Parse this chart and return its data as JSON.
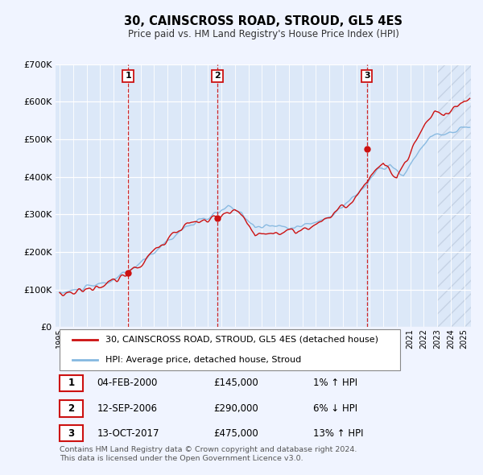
{
  "title": "30, CAINSCROSS ROAD, STROUD, GL5 4ES",
  "subtitle": "Price paid vs. HM Land Registry's House Price Index (HPI)",
  "background_color": "#f0f4ff",
  "plot_bg_color": "#dce8f8",
  "hpi_color": "#85b8e0",
  "price_color": "#cc1111",
  "ylim": [
    0,
    700000
  ],
  "yticks": [
    0,
    100000,
    200000,
    300000,
    400000,
    500000,
    600000,
    700000
  ],
  "xlim_start": 1994.7,
  "xlim_end": 2025.5,
  "sale_points": [
    {
      "year": 2000.08,
      "price": 145000,
      "label": "1"
    },
    {
      "year": 2006.7,
      "price": 290000,
      "label": "2"
    },
    {
      "year": 2017.78,
      "price": 475000,
      "label": "3"
    }
  ],
  "vlines": [
    {
      "year": 2000.08,
      "label": "1"
    },
    {
      "year": 2006.7,
      "label": "2"
    },
    {
      "year": 2017.78,
      "label": "3"
    }
  ],
  "legend_price_label": "30, CAINSCROSS ROAD, STROUD, GL5 4ES (detached house)",
  "legend_hpi_label": "HPI: Average price, detached house, Stroud",
  "table_rows": [
    {
      "num": "1",
      "date": "04-FEB-2000",
      "price": "£145,000",
      "hpi": "1% ↑ HPI"
    },
    {
      "num": "2",
      "date": "12-SEP-2006",
      "price": "£290,000",
      "hpi": "6% ↓ HPI"
    },
    {
      "num": "3",
      "date": "13-OCT-2017",
      "price": "£475,000",
      "hpi": "13% ↑ HPI"
    }
  ],
  "footer": "Contains HM Land Registry data © Crown copyright and database right 2024.\nThis data is licensed under the Open Government Licence v3.0.",
  "xtick_years": [
    1995,
    1996,
    1997,
    1998,
    1999,
    2000,
    2001,
    2002,
    2003,
    2004,
    2005,
    2006,
    2007,
    2008,
    2009,
    2010,
    2011,
    2012,
    2013,
    2014,
    2015,
    2016,
    2017,
    2018,
    2019,
    2020,
    2021,
    2022,
    2023,
    2024,
    2025
  ]
}
